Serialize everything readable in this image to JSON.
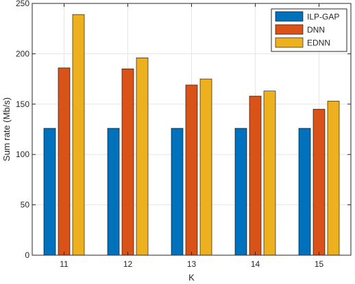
{
  "chart_data": {
    "type": "bar",
    "categories": [
      "11",
      "12",
      "13",
      "14",
      "15"
    ],
    "series": [
      {
        "name": "ILP-GAP",
        "color": "#0072BD",
        "values": [
          126,
          126,
          126,
          126,
          126
        ]
      },
      {
        "name": "DNN",
        "color": "#D95319",
        "values": [
          186,
          185,
          169,
          158,
          145
        ]
      },
      {
        "name": "EDNN",
        "color": "#EDB120",
        "values": [
          239,
          196,
          175,
          163,
          153
        ]
      }
    ],
    "title": "",
    "xlabel": "K",
    "ylabel": "Sum rate (Mb/s)",
    "ylim": [
      0,
      250
    ],
    "yticks": [
      0,
      50,
      100,
      150,
      200,
      250
    ],
    "grid": true,
    "legend_position": "top-right"
  }
}
